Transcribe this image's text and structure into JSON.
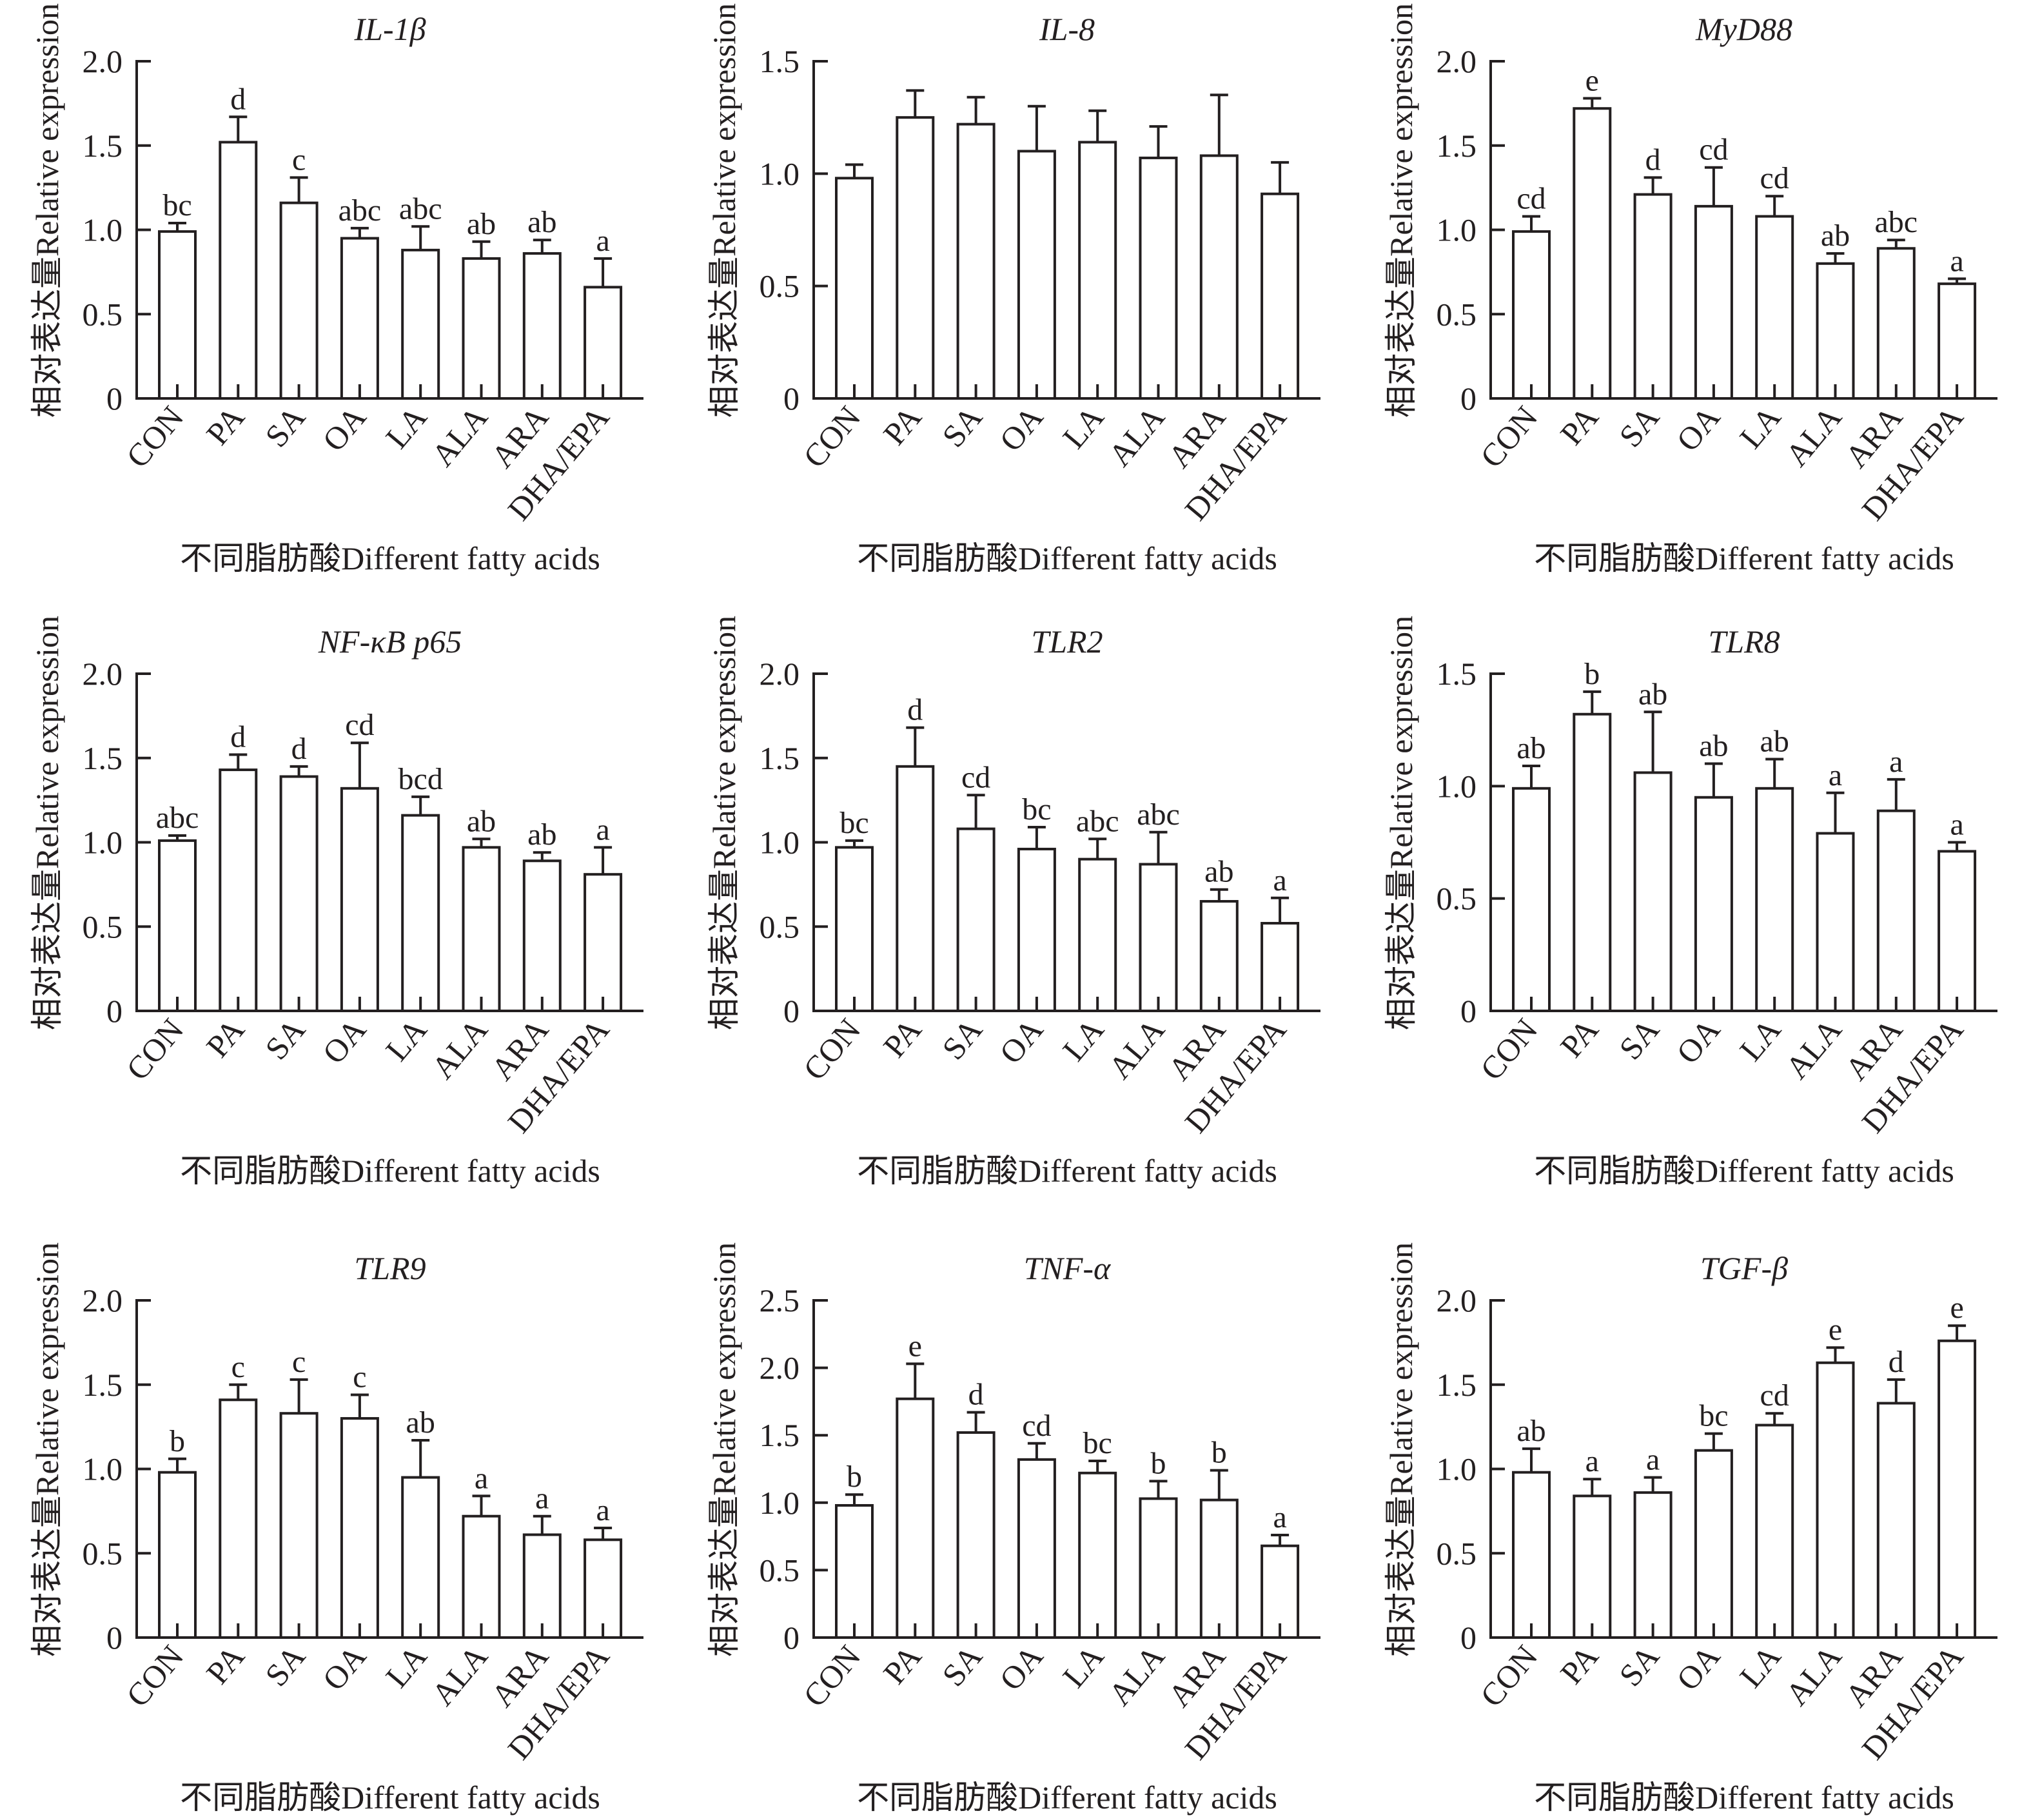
{
  "figure": {
    "y_axis_label": "相对表达量Relative expression",
    "x_axis_label": "不同脂肪酸Different fatty acids"
  },
  "chart_data": [
    {
      "type": "bar",
      "title": "IL-1β",
      "categories": [
        "CON",
        "PA",
        "SA",
        "OA",
        "LA",
        "ALA",
        "ARA",
        "DHA/EPA"
      ],
      "values": [
        0.99,
        1.52,
        1.16,
        0.95,
        0.88,
        0.83,
        0.86,
        0.66
      ],
      "error_upper": [
        1.04,
        1.67,
        1.31,
        1.01,
        1.02,
        0.93,
        0.94,
        0.83
      ],
      "significance": [
        "bc",
        "d",
        "c",
        "abc",
        "abc",
        "ab",
        "ab",
        "a"
      ],
      "xlabel": "不同脂肪酸Different fatty acids",
      "ylabel": "相对表达量Relative expression",
      "ylim": [
        0,
        2.0
      ],
      "yticks": [
        "0",
        "0.5",
        "1.0",
        "1.5",
        "2.0"
      ],
      "ytick_values": [
        0,
        0.5,
        1.0,
        1.5,
        2.0
      ],
      "grid": false
    },
    {
      "type": "bar",
      "title": "IL-8",
      "categories": [
        "CON",
        "PA",
        "SA",
        "OA",
        "LA",
        "ALA",
        "ARA",
        "DHA/EPA"
      ],
      "values": [
        0.98,
        1.25,
        1.22,
        1.1,
        1.14,
        1.07,
        1.08,
        0.91
      ],
      "error_upper": [
        1.04,
        1.37,
        1.34,
        1.3,
        1.28,
        1.21,
        1.35,
        1.05
      ],
      "significance": [
        "",
        "",
        "",
        "",
        "",
        "",
        "",
        ""
      ],
      "xlabel": "不同脂肪酸Different fatty acids",
      "ylabel": "相对表达量Relative expression",
      "ylim": [
        0,
        1.5
      ],
      "yticks": [
        "0",
        "0.5",
        "1.0",
        "1.5"
      ],
      "ytick_values": [
        0,
        0.5,
        1.0,
        1.5
      ],
      "grid": false
    },
    {
      "type": "bar",
      "title": "MyD88",
      "categories": [
        "CON",
        "PA",
        "SA",
        "OA",
        "LA",
        "ALA",
        "ARA",
        "DHA/EPA"
      ],
      "values": [
        0.99,
        1.72,
        1.21,
        1.14,
        1.08,
        0.8,
        0.89,
        0.68
      ],
      "error_upper": [
        1.08,
        1.78,
        1.31,
        1.37,
        1.2,
        0.86,
        0.94,
        0.71
      ],
      "significance": [
        "cd",
        "e",
        "d",
        "cd",
        "cd",
        "ab",
        "abc",
        "a"
      ],
      "xlabel": "不同脂肪酸Different fatty acids",
      "ylabel": "相对表达量Relative expression",
      "ylim": [
        0,
        2.0
      ],
      "yticks": [
        "0",
        "0.5",
        "1.0",
        "1.5",
        "2.0"
      ],
      "ytick_values": [
        0,
        0.5,
        1.0,
        1.5,
        2.0
      ],
      "grid": false
    },
    {
      "type": "bar",
      "title": "NF-κB p65",
      "categories": [
        "CON",
        "PA",
        "SA",
        "OA",
        "LA",
        "ALA",
        "ARA",
        "DHA/EPA"
      ],
      "values": [
        1.01,
        1.43,
        1.39,
        1.32,
        1.16,
        0.97,
        0.89,
        0.81
      ],
      "error_upper": [
        1.04,
        1.52,
        1.45,
        1.59,
        1.27,
        1.02,
        0.94,
        0.97
      ],
      "significance": [
        "abc",
        "d",
        "d",
        "cd",
        "bcd",
        "ab",
        "ab",
        "a"
      ],
      "xlabel": "不同脂肪酸Different fatty acids",
      "ylabel": "相对表达量Relative expression",
      "ylim": [
        0,
        2.0
      ],
      "yticks": [
        "0",
        "0.5",
        "1.0",
        "1.5",
        "2.0"
      ],
      "ytick_values": [
        0,
        0.5,
        1.0,
        1.5,
        2.0
      ],
      "grid": false
    },
    {
      "type": "bar",
      "title": "TLR2",
      "categories": [
        "CON",
        "PA",
        "SA",
        "OA",
        "LA",
        "ALA",
        "ARA",
        "DHA/EPA"
      ],
      "values": [
        0.97,
        1.45,
        1.08,
        0.96,
        0.9,
        0.87,
        0.65,
        0.52
      ],
      "error_upper": [
        1.01,
        1.68,
        1.28,
        1.09,
        1.02,
        1.06,
        0.72,
        0.67
      ],
      "significance": [
        "bc",
        "d",
        "cd",
        "bc",
        "abc",
        "abc",
        "ab",
        "a"
      ],
      "xlabel": "不同脂肪酸Different fatty acids",
      "ylabel": "相对表达量Relative expression",
      "ylim": [
        0,
        2.0
      ],
      "yticks": [
        "0",
        "0.5",
        "1.0",
        "1.5",
        "2.0"
      ],
      "ytick_values": [
        0,
        0.5,
        1.0,
        1.5,
        2.0
      ],
      "grid": false
    },
    {
      "type": "bar",
      "title": "TLR8",
      "categories": [
        "CON",
        "PA",
        "SA",
        "OA",
        "LA",
        "ALA",
        "ARA",
        "DHA/EPA"
      ],
      "values": [
        0.99,
        1.32,
        1.06,
        0.95,
        0.99,
        0.79,
        0.89,
        0.71
      ],
      "error_upper": [
        1.09,
        1.42,
        1.33,
        1.1,
        1.12,
        0.97,
        1.03,
        0.75
      ],
      "significance": [
        "ab",
        "b",
        "ab",
        "ab",
        "ab",
        "a",
        "a",
        "a"
      ],
      "xlabel": "不同脂肪酸Different fatty acids",
      "ylabel": "相对表达量Relative expression",
      "ylim": [
        0,
        1.5
      ],
      "yticks": [
        "0",
        "0.5",
        "1.0",
        "1.5"
      ],
      "ytick_values": [
        0,
        0.5,
        1.0,
        1.5
      ],
      "grid": false
    },
    {
      "type": "bar",
      "title": "TLR9",
      "categories": [
        "CON",
        "PA",
        "SA",
        "OA",
        "LA",
        "ALA",
        "ARA",
        "DHA/EPA"
      ],
      "values": [
        0.98,
        1.41,
        1.33,
        1.3,
        0.95,
        0.72,
        0.61,
        0.58
      ],
      "error_upper": [
        1.06,
        1.5,
        1.53,
        1.44,
        1.17,
        0.84,
        0.72,
        0.65
      ],
      "significance": [
        "b",
        "c",
        "c",
        "c",
        "ab",
        "a",
        "a",
        "a"
      ],
      "xlabel": "不同脂肪酸Different fatty acids",
      "ylabel": "相对表达量Relative expression",
      "ylim": [
        0,
        2.0
      ],
      "yticks": [
        "0",
        "0.5",
        "1.0",
        "1.5",
        "2.0"
      ],
      "ytick_values": [
        0,
        0.5,
        1.0,
        1.5,
        2.0
      ],
      "grid": false
    },
    {
      "type": "bar",
      "title": "TNF-α",
      "categories": [
        "CON",
        "PA",
        "SA",
        "OA",
        "LA",
        "ALA",
        "ARA",
        "DHA/EPA"
      ],
      "values": [
        0.98,
        1.77,
        1.52,
        1.32,
        1.22,
        1.03,
        1.02,
        0.68
      ],
      "error_upper": [
        1.06,
        2.03,
        1.67,
        1.44,
        1.31,
        1.16,
        1.24,
        0.76
      ],
      "significance": [
        "b",
        "e",
        "d",
        "cd",
        "bc",
        "b",
        "b",
        "a"
      ],
      "xlabel": "不同脂肪酸Different fatty acids",
      "ylabel": "相对表达量Relative expression",
      "ylim": [
        0,
        2.5
      ],
      "yticks": [
        "0",
        "0.5",
        "1.0",
        "1.5",
        "2.0",
        "2.5"
      ],
      "ytick_values": [
        0,
        0.5,
        1.0,
        1.5,
        2.0,
        2.5
      ],
      "grid": false
    },
    {
      "type": "bar",
      "title": "TGF-β",
      "categories": [
        "CON",
        "PA",
        "SA",
        "OA",
        "LA",
        "ALA",
        "ARA",
        "DHA/EPA"
      ],
      "values": [
        0.98,
        0.84,
        0.86,
        1.11,
        1.26,
        1.63,
        1.39,
        1.76
      ],
      "error_upper": [
        1.12,
        0.94,
        0.95,
        1.21,
        1.33,
        1.72,
        1.53,
        1.85
      ],
      "significance": [
        "ab",
        "a",
        "a",
        "bc",
        "cd",
        "e",
        "d",
        "e"
      ],
      "xlabel": "不同脂肪酸Different fatty acids",
      "ylabel": "相对表达量Relative expression",
      "ylim": [
        0,
        2.0
      ],
      "yticks": [
        "0",
        "0.5",
        "1.0",
        "1.5",
        "2.0"
      ],
      "ytick_values": [
        0,
        0.5,
        1.0,
        1.5,
        2.0
      ],
      "grid": false
    }
  ]
}
